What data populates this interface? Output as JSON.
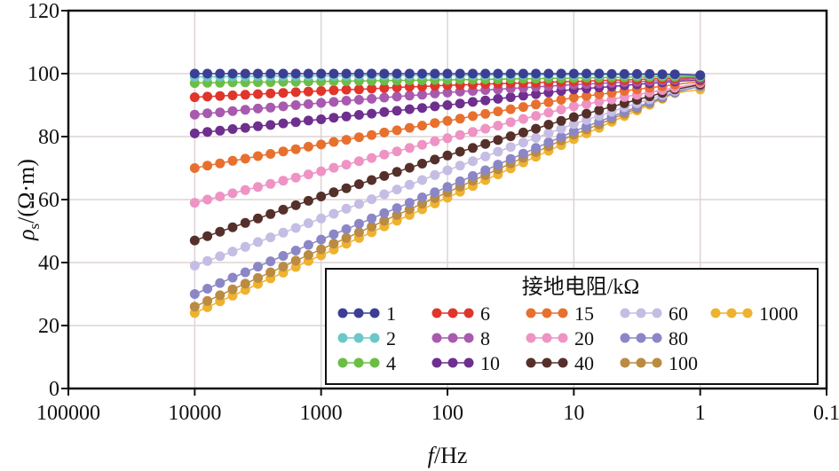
{
  "chart_data": {
    "type": "line",
    "title": "",
    "xlabel": "f/Hz",
    "ylabel": "ρs/(Ω·m)",
    "x_scale": "log",
    "x_reversed": true,
    "xlim": [
      100000,
      0.1
    ],
    "ylim": [
      0,
      120
    ],
    "x_ticks": [
      "100000",
      "10000",
      "1000",
      "100",
      "10",
      "1",
      "0.1"
    ],
    "x_tick_values": [
      100000,
      10000,
      1000,
      100,
      10,
      1,
      0.1
    ],
    "y_ticks": [
      "0",
      "20",
      "40",
      "60",
      "80",
      "100",
      "120"
    ],
    "y_tick_values": [
      0,
      20,
      40,
      60,
      80,
      100,
      120
    ],
    "grid": true,
    "legend": {
      "title": "接地电阻/kΩ",
      "placement": "bottom-right",
      "columns": 5
    },
    "x": [
      10000,
      7943,
      6310,
      5012,
      3981,
      3162,
      2512,
      1995,
      1585,
      1259,
      1000,
      794.3,
      631.0,
      501.2,
      398.1,
      316.2,
      251.2,
      199.5,
      158.5,
      125.9,
      100,
      79.43,
      63.1,
      50.12,
      39.81,
      31.62,
      25.12,
      19.95,
      15.85,
      12.59,
      10,
      7.943,
      6.31,
      5.012,
      3.981,
      3.162,
      2.512,
      1.995,
      1.585,
      1
    ],
    "series": [
      {
        "name": "1",
        "color": "#3b3f94",
        "values": [
          100,
          100,
          100,
          100,
          100,
          100,
          100,
          100,
          100,
          100,
          100,
          100,
          100,
          100,
          100,
          100,
          100,
          100,
          100,
          100,
          100,
          100,
          100,
          100,
          100,
          100,
          100,
          100,
          100,
          100,
          100,
          100,
          100,
          99.9,
          99.9,
          99.9,
          99.9,
          99.8,
          99.8,
          99.5
        ]
      },
      {
        "name": "2",
        "color": "#6cc7c9",
        "values": [
          99.0,
          99.0,
          99.1,
          99.1,
          99.1,
          99.2,
          99.2,
          99.2,
          99.2,
          99.3,
          99.3,
          99.3,
          99.3,
          99.4,
          99.4,
          99.4,
          99.4,
          99.4,
          99.5,
          99.5,
          99.5,
          99.5,
          99.5,
          99.5,
          99.5,
          99.6,
          99.6,
          99.6,
          99.6,
          99.6,
          99.6,
          99.6,
          99.6,
          99.6,
          99.6,
          99.5,
          99.5,
          99.5,
          99.5,
          99.3
        ]
      },
      {
        "name": "4",
        "color": "#6cbd45",
        "values": [
          97.0,
          97.1,
          97.1,
          97.2,
          97.2,
          97.3,
          97.3,
          97.4,
          97.4,
          97.5,
          97.5,
          97.6,
          97.6,
          97.7,
          97.7,
          97.8,
          97.8,
          97.9,
          97.9,
          98.0,
          98.0,
          98.1,
          98.1,
          98.2,
          98.2,
          98.3,
          98.4,
          98.4,
          98.5,
          98.5,
          98.6,
          98.7,
          98.7,
          98.8,
          98.8,
          98.9,
          98.9,
          99.0,
          99.0,
          99.0
        ]
      },
      {
        "name": "6",
        "color": "#e0352b",
        "values": [
          92.5,
          92.7,
          92.9,
          93.1,
          93.3,
          93.5,
          93.7,
          93.9,
          94.1,
          94.3,
          94.5,
          94.7,
          94.9,
          95.0,
          95.2,
          95.4,
          95.6,
          95.8,
          95.9,
          96.1,
          96.3,
          96.4,
          96.5,
          96.7,
          96.8,
          96.9,
          97.0,
          97.1,
          97.3,
          97.4,
          97.5,
          97.6,
          97.8,
          97.9,
          98.0,
          98.1,
          98.3,
          98.4,
          98.5,
          98.8
        ]
      },
      {
        "name": "8",
        "color": "#a85aae",
        "values": [
          87.0,
          87.4,
          87.7,
          88.1,
          88.5,
          88.9,
          89.2,
          89.6,
          90.0,
          90.3,
          90.7,
          91.0,
          91.4,
          91.7,
          92.0,
          92.4,
          92.7,
          93.0,
          93.3,
          93.7,
          94.0,
          94.3,
          94.5,
          94.8,
          95.0,
          95.3,
          95.5,
          95.8,
          96.0,
          96.3,
          96.5,
          96.7,
          96.9,
          97.1,
          97.3,
          97.4,
          97.6,
          97.8,
          98.0,
          98.5
        ]
      },
      {
        "name": "10",
        "color": "#6e2f8e",
        "values": [
          81.0,
          81.5,
          81.9,
          82.4,
          82.8,
          83.3,
          83.7,
          84.2,
          84.6,
          85.1,
          85.5,
          86.0,
          86.4,
          86.9,
          87.3,
          87.8,
          88.2,
          88.7,
          89.1,
          89.6,
          90.0,
          90.5,
          91.0,
          91.5,
          92.0,
          92.5,
          93.0,
          93.5,
          94.0,
          94.5,
          95.0,
          95.3,
          95.6,
          95.9,
          96.3,
          96.6,
          96.9,
          97.2,
          97.5,
          98.0
        ]
      },
      {
        "name": "15",
        "color": "#e8702e",
        "values": [
          70.0,
          70.8,
          71.5,
          72.3,
          73.0,
          73.8,
          74.5,
          75.3,
          76.0,
          76.8,
          77.5,
          78.3,
          79.0,
          79.8,
          80.5,
          81.3,
          82.0,
          82.8,
          83.5,
          84.3,
          85.0,
          85.7,
          86.5,
          87.2,
          88.0,
          88.7,
          89.4,
          90.2,
          90.9,
          91.7,
          92.4,
          92.9,
          93.4,
          93.9,
          94.5,
          95.0,
          95.5,
          96.0,
          96.5,
          97.5
        ]
      },
      {
        "name": "20",
        "color": "#ee93c3",
        "values": [
          59.0,
          60.0,
          61.0,
          62.0,
          63.0,
          64.0,
          65.0,
          66.0,
          67.0,
          68.0,
          69.0,
          70.1,
          71.1,
          72.2,
          73.2,
          74.3,
          75.3,
          76.4,
          77.4,
          78.5,
          79.5,
          80.5,
          81.5,
          82.5,
          83.5,
          84.6,
          85.6,
          86.6,
          87.6,
          88.6,
          89.6,
          90.3,
          91.1,
          91.8,
          92.6,
          93.3,
          94.0,
          94.8,
          95.5,
          97.0
        ]
      },
      {
        "name": "40",
        "color": "#55302b",
        "values": [
          47.0,
          48.4,
          49.8,
          51.2,
          52.6,
          54.0,
          55.4,
          56.8,
          58.2,
          59.6,
          61.0,
          62.3,
          63.6,
          64.9,
          66.2,
          67.5,
          68.8,
          70.1,
          71.4,
          72.7,
          74.0,
          75.2,
          76.4,
          77.7,
          78.9,
          80.1,
          81.3,
          82.5,
          83.8,
          85.0,
          86.2,
          87.3,
          88.4,
          89.5,
          90.6,
          91.7,
          92.8,
          93.9,
          95.0,
          96.5
        ]
      },
      {
        "name": "60",
        "color": "#c5bde3",
        "values": [
          39.0,
          40.5,
          42.0,
          43.5,
          45.0,
          46.5,
          48.0,
          49.5,
          51.0,
          52.5,
          54.0,
          55.5,
          57.1,
          58.6,
          60.1,
          61.7,
          63.2,
          64.7,
          66.2,
          67.8,
          69.3,
          70.8,
          72.2,
          73.7,
          75.2,
          76.7,
          78.1,
          79.6,
          81.1,
          82.5,
          84.0,
          85.3,
          86.6,
          87.9,
          89.3,
          90.6,
          91.9,
          93.2,
          94.5,
          96.5
        ]
      },
      {
        "name": "80",
        "color": "#8b87c6",
        "values": [
          30.0,
          31.7,
          33.5,
          35.2,
          36.9,
          38.7,
          40.4,
          42.1,
          43.8,
          45.6,
          47.3,
          49.0,
          50.6,
          52.3,
          54.0,
          55.7,
          57.3,
          59.0,
          60.7,
          62.3,
          64.0,
          65.8,
          67.5,
          69.3,
          71.1,
          72.9,
          74.6,
          76.4,
          78.2,
          79.9,
          81.7,
          83.2,
          84.8,
          86.3,
          87.9,
          89.4,
          90.9,
          92.5,
          94.0,
          96.0
        ]
      },
      {
        "name": "100",
        "color": "#b98b43",
        "values": [
          26.0,
          27.8,
          29.6,
          31.5,
          33.3,
          35.1,
          36.9,
          38.7,
          40.6,
          42.4,
          44.2,
          46.0,
          47.8,
          49.6,
          51.4,
          53.3,
          55.1,
          56.9,
          58.7,
          60.5,
          62.3,
          64.1,
          66.0,
          67.8,
          69.6,
          71.5,
          73.3,
          75.1,
          76.9,
          78.8,
          80.6,
          82.3,
          83.9,
          85.6,
          87.3,
          88.9,
          90.6,
          92.3,
          94.0,
          97.0
        ]
      },
      {
        "name": "1000",
        "color": "#efb22f",
        "values": [
          24.0,
          25.8,
          27.7,
          29.5,
          31.3,
          33.2,
          35.0,
          36.8,
          38.6,
          40.5,
          42.3,
          44.1,
          46.0,
          47.8,
          49.6,
          51.5,
          53.3,
          55.1,
          56.9,
          58.8,
          60.6,
          62.5,
          64.3,
          66.2,
          68.0,
          69.9,
          71.8,
          73.6,
          75.5,
          77.3,
          79.2,
          81.0,
          82.8,
          84.7,
          86.5,
          88.3,
          90.1,
          92.0,
          93.8,
          95.0
        ]
      }
    ]
  }
}
